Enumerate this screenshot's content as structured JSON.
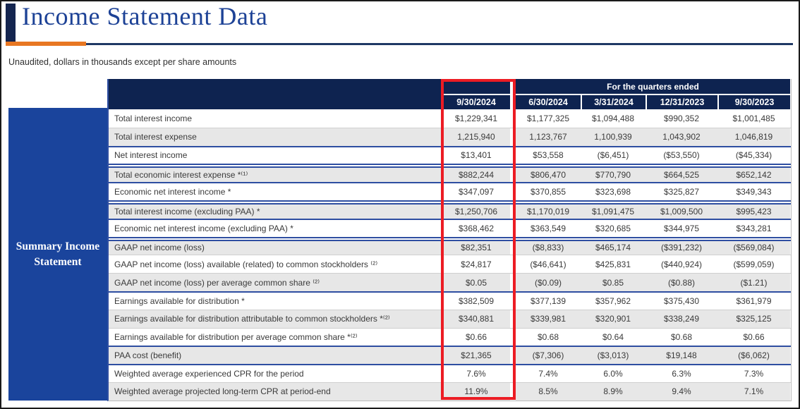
{
  "page": {
    "title": "Income Statement Data",
    "subtitle": "Unaudited, dollars in thousands except per share amounts"
  },
  "table": {
    "row_group_label": "Summary Income Statement",
    "header": {
      "span_label": "For the quarters ended",
      "columns": [
        "9/30/2024",
        "6/30/2024",
        "3/31/2024",
        "12/31/2023",
        "9/30/2023"
      ],
      "highlighted_column": "9/30/2024"
    },
    "rows": [
      {
        "label": "Total interest income",
        "values": [
          "$1,229,341",
          "$1,177,325",
          "$1,094,488",
          "$990,352",
          "$1,001,485"
        ],
        "sep": "none"
      },
      {
        "label": "Total interest expense",
        "values": [
          "1,215,940",
          "1,123,767",
          "1,100,939",
          "1,043,902",
          "1,046,819"
        ],
        "sep": "light"
      },
      {
        "label": "Net interest income",
        "values": [
          "$13,401",
          "$53,558",
          "($6,451)",
          "($53,550)",
          "($45,334)"
        ],
        "sep": "blue"
      },
      {
        "label": "Total economic interest expense *⁽¹⁾",
        "values": [
          "$882,244",
          "$806,470",
          "$770,790",
          "$664,525",
          "$652,142"
        ],
        "sep": "double"
      },
      {
        "label": "Economic net interest income *",
        "values": [
          "$347,097",
          "$370,855",
          "$323,698",
          "$325,827",
          "$349,343"
        ],
        "sep": "blue"
      },
      {
        "label": "Total interest income (excluding PAA) *",
        "values": [
          "$1,250,706",
          "$1,170,019",
          "$1,091,475",
          "$1,009,500",
          "$995,423"
        ],
        "sep": "double"
      },
      {
        "label": "Economic net interest income (excluding PAA) *",
        "values": [
          "$368,462",
          "$363,549",
          "$320,685",
          "$344,975",
          "$343,281"
        ],
        "sep": "blue"
      },
      {
        "label": "GAAP net income (loss)",
        "values": [
          "$82,351",
          "($8,833)",
          "$465,174",
          "($391,232)",
          "($569,084)"
        ],
        "sep": "double"
      },
      {
        "label": "GAAP net income (loss) available (related) to common stockholders ⁽²⁾",
        "values": [
          "$24,817",
          "($46,641)",
          "$425,831",
          "($440,924)",
          "($599,059)"
        ],
        "sep": "light"
      },
      {
        "label": "GAAP net income (loss) per average common share ⁽²⁾",
        "values": [
          "$0.05",
          "($0.09)",
          "$0.85",
          "($0.88)",
          "($1.21)"
        ],
        "sep": "light"
      },
      {
        "label": "Earnings available for distribution *",
        "values": [
          "$382,509",
          "$377,139",
          "$357,962",
          "$375,430",
          "$361,979"
        ],
        "sep": "blue"
      },
      {
        "label": "Earnings available for distribution attributable to common stockholders *⁽²⁾",
        "values": [
          "$340,881",
          "$339,981",
          "$320,901",
          "$338,249",
          "$325,125"
        ],
        "sep": "light"
      },
      {
        "label": "Earnings available for distribution per average common share *⁽²⁾",
        "values": [
          "$0.66",
          "$0.68",
          "$0.64",
          "$0.68",
          "$0.66"
        ],
        "sep": "light"
      },
      {
        "label": "PAA cost (benefit)",
        "values": [
          "$21,365",
          "($7,306)",
          "($3,013)",
          "$19,148",
          "($6,062)"
        ],
        "sep": "blue"
      },
      {
        "label": "Weighted average experienced CPR for the period",
        "values": [
          "7.6%",
          "7.4%",
          "6.0%",
          "6.3%",
          "7.3%"
        ],
        "sep": "blue"
      },
      {
        "label": "Weighted average projected long-term CPR at period-end",
        "values": [
          "11.9%",
          "8.5%",
          "8.9%",
          "9.4%",
          "7.1%"
        ],
        "sep": "light"
      }
    ]
  },
  "colors": {
    "accent_orange": "#E87722",
    "header_navy": "#0E2350",
    "sidebar_blue": "#1A449C",
    "highlight_red": "#EC1C24",
    "grid_blue": "#2E4EA1",
    "row_alt_gray": "#E7E7E7",
    "title_blue": "#1D4296"
  }
}
